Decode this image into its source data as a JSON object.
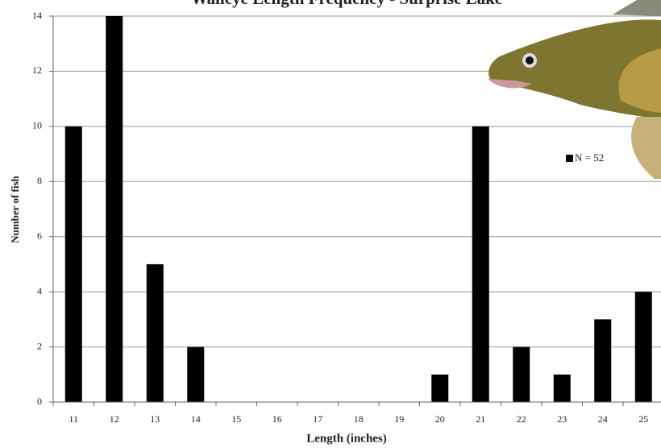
{
  "chart_data": {
    "type": "bar",
    "title": "Walleye Length Frequency - Surprise Lake",
    "x_label": "Length (inches)",
    "y_label": "Number of fish",
    "categories": [
      "11",
      "12",
      "13",
      "14",
      "15",
      "16",
      "17",
      "18",
      "19",
      "20",
      "21",
      "22",
      "23",
      "24",
      "25"
    ],
    "series": [
      {
        "name": "N = 52",
        "color": "#000000",
        "values": [
          10,
          14,
          5,
          2,
          0,
          0,
          0,
          0,
          0,
          1,
          10,
          2,
          1,
          3,
          4
        ]
      }
    ],
    "ylim": [
      0,
      14
    ],
    "yticks": [
      0,
      2,
      4,
      6,
      8,
      10,
      12,
      14
    ],
    "grid": true
  }
}
